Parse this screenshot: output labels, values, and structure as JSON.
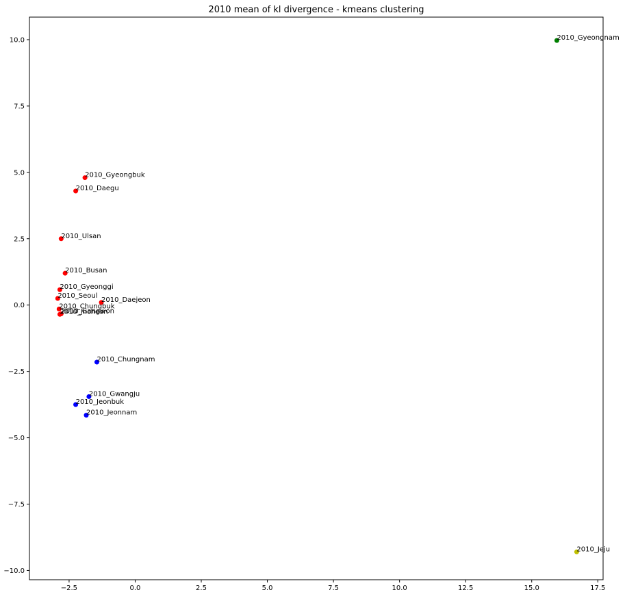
{
  "chart_data": {
    "type": "scatter",
    "title": "2010 mean of kl divergence - kmeans clustering",
    "xlabel": "",
    "ylabel": "",
    "xlim": [
      -4.0,
      17.7
    ],
    "ylim": [
      -10.35,
      10.85
    ],
    "grid": false,
    "legend": "none",
    "x_ticks": [
      -2.5,
      0.0,
      2.5,
      5.0,
      7.5,
      10.0,
      12.5,
      15.0,
      17.5
    ],
    "x_tick_labels": [
      "−2.5",
      "0.0",
      "2.5",
      "5.0",
      "7.5",
      "10.0",
      "12.5",
      "15.0",
      "17.5"
    ],
    "y_ticks": [
      10.0,
      7.5,
      5.0,
      2.5,
      0.0,
      -2.5,
      -5.0,
      -7.5,
      -10.0
    ],
    "y_tick_labels": [
      "10.0",
      "7.5",
      "5.0",
      "2.5",
      "0.0",
      "−2.5",
      "−5.0",
      "−7.5",
      "−10.0"
    ],
    "cluster_colors": {
      "red": "#ff0000",
      "blue": "#0000ff",
      "green": "#008000",
      "yellow": "#bfbf00"
    },
    "points": [
      {
        "label": "2010_Gyeongnam",
        "x": 15.95,
        "y": 9.97,
        "cluster": "green"
      },
      {
        "label": "2010_Gyeongbuk",
        "x": -1.9,
        "y": 4.8,
        "cluster": "red"
      },
      {
        "label": "2010_Daegu",
        "x": -2.25,
        "y": 4.3,
        "cluster": "red"
      },
      {
        "label": "2010_Ulsan",
        "x": -2.8,
        "y": 2.5,
        "cluster": "red"
      },
      {
        "label": "2010_Busan",
        "x": -2.65,
        "y": 1.2,
        "cluster": "red"
      },
      {
        "label": "2010_Gyeonggi",
        "x": -2.85,
        "y": 0.58,
        "cluster": "red"
      },
      {
        "label": "2010_Seoul",
        "x": -2.93,
        "y": 0.25,
        "cluster": "red"
      },
      {
        "label": "2010_Daejeon",
        "x": -1.28,
        "y": 0.1,
        "cluster": "red"
      },
      {
        "label": "2010_Chungbuk",
        "x": -2.88,
        "y": -0.15,
        "cluster": "red"
      },
      {
        "label": "2010_Incheon",
        "x": -2.85,
        "y": -0.35,
        "cluster": "red"
      },
      {
        "label": "2010_Gangwon",
        "x": -2.8,
        "y": -0.33,
        "cluster": "red"
      },
      {
        "label": "2010_Chungnam",
        "x": -1.45,
        "y": -2.15,
        "cluster": "blue"
      },
      {
        "label": "2010_Gwangju",
        "x": -1.75,
        "y": -3.45,
        "cluster": "blue"
      },
      {
        "label": "2010_Jeonbuk",
        "x": -2.25,
        "y": -3.75,
        "cluster": "blue"
      },
      {
        "label": "2010_Jeonnam",
        "x": -1.85,
        "y": -4.15,
        "cluster": "blue"
      },
      {
        "label": "2010_Jeju",
        "x": 16.7,
        "y": -9.3,
        "cluster": "yellow"
      }
    ]
  }
}
